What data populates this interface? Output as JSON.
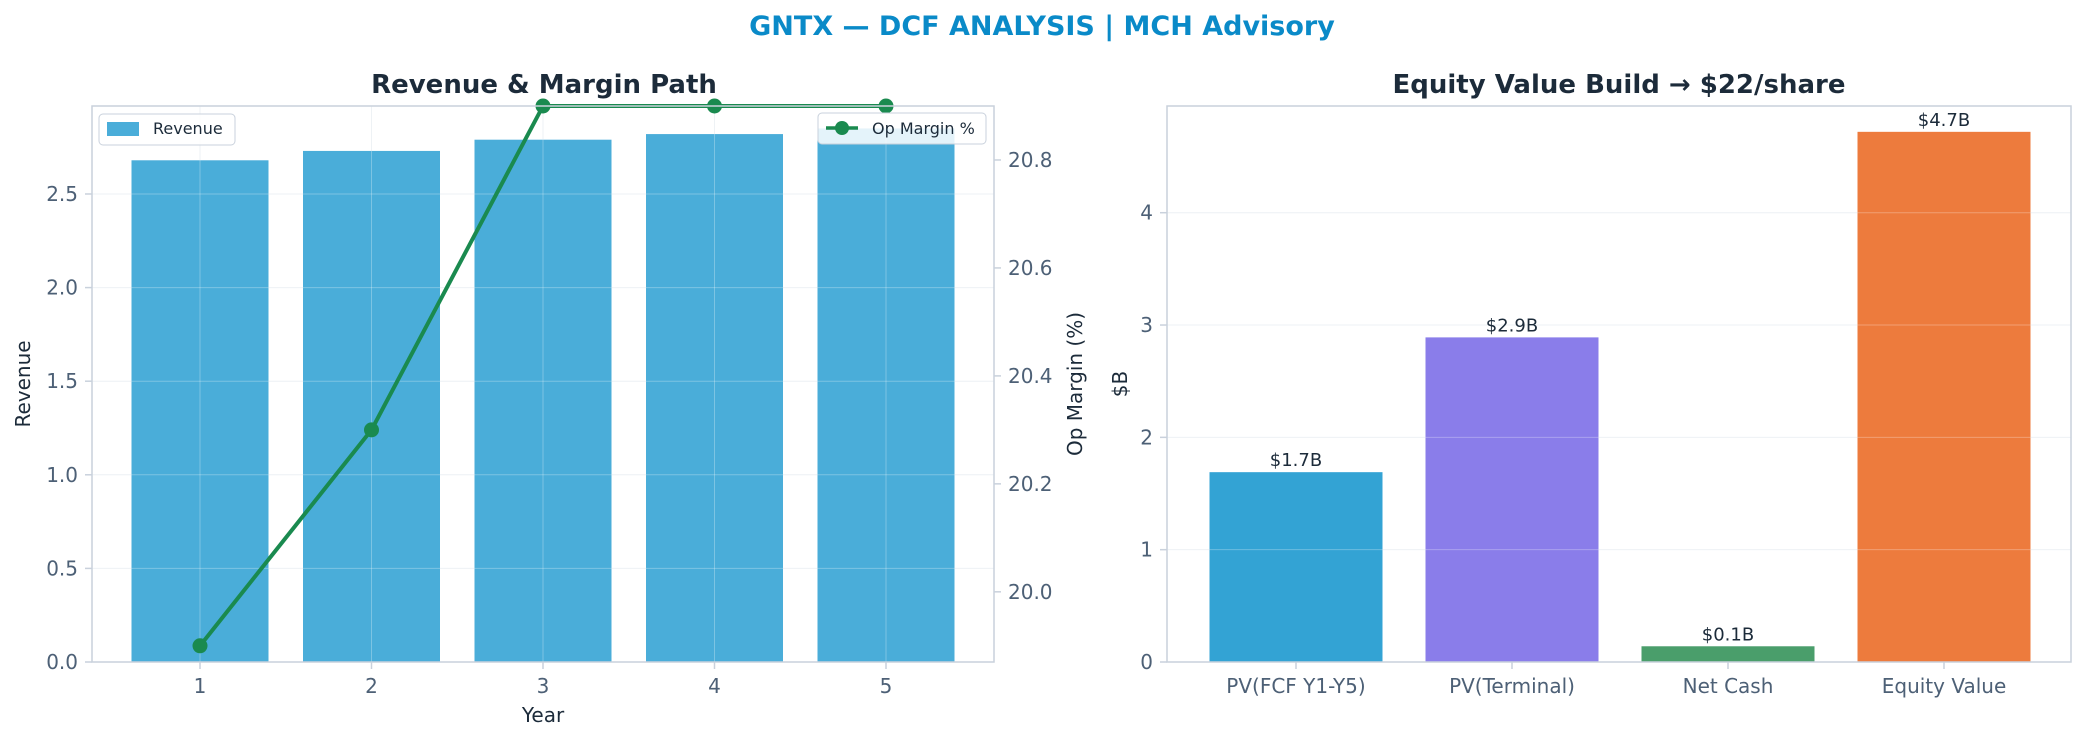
{
  "suptitle": "GNTX — DCF ANALYSIS | MCH Advisory",
  "chart_data": [
    {
      "type": "bar",
      "title": "Revenue & Margin Path",
      "xlabel": "Year",
      "ylabel": "Revenue",
      "y2label": "Op Margin (%)",
      "categories": [
        "1",
        "2",
        "3",
        "4",
        "5"
      ],
      "ylim": [
        0,
        2.97
      ],
      "yticks": [
        "0.0",
        "0.5",
        "1.0",
        "1.5",
        "2.0",
        "2.5"
      ],
      "y2lim": [
        19.87,
        20.9
      ],
      "y2ticks": [
        "20.0",
        "20.2",
        "20.4",
        "20.6",
        "20.8"
      ],
      "series": [
        {
          "name": "Revenue",
          "kind": "bar",
          "axis": "left",
          "color": "#4aadd9",
          "values": [
            2.68,
            2.73,
            2.79,
            2.82,
            2.85
          ]
        },
        {
          "name": "Op Margin %",
          "kind": "line",
          "axis": "right",
          "color": "#1a8a4f",
          "values": [
            19.9,
            20.3,
            20.9,
            20.9,
            20.9
          ]
        }
      ],
      "legend": [
        "top-left",
        "top-right"
      ],
      "grid": true
    },
    {
      "type": "bar",
      "title": "Equity Value Build → $22/share",
      "xlabel": "",
      "ylabel": "$B",
      "categories": [
        "PV(FCF Y1-Y5)",
        "PV(Terminal)",
        "Net Cash",
        "Equity Value"
      ],
      "values": [
        1.69,
        2.89,
        0.14,
        4.72
      ],
      "data_labels": [
        "$1.7B",
        "$2.9B",
        "$0.1B",
        "$4.7B"
      ],
      "colors": [
        "#33a3d4",
        "#8a7dea",
        "#4a9e6b",
        "#ed7b3d"
      ],
      "ylim": [
        0,
        4.95
      ],
      "yticks": [
        "0",
        "1",
        "2",
        "3",
        "4"
      ],
      "grid": true
    }
  ]
}
